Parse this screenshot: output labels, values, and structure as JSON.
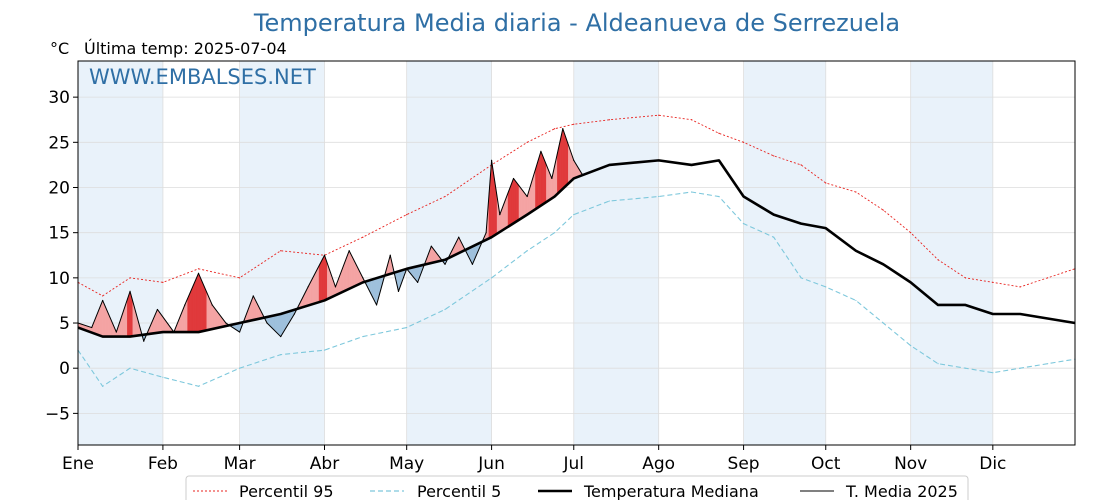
{
  "title": "Temperatura Media diaria - Aldeanueva de Serrezuela",
  "unit_label": "°C",
  "last_temp_label": "Última temp: 2025-07-04",
  "watermark": "WWW.EMBALSES.NET",
  "colors": {
    "title": "#2f6fa5",
    "p95": "#e8231f",
    "p5": "#7ec8dc",
    "median": "#000000",
    "current": "#000000",
    "fill_above": "#f4a3a3",
    "fill_above_dark": "#e0393b",
    "fill_below": "#5b8db8",
    "fill_below_light": "#9ec0dc",
    "band": "#e9f2fa"
  },
  "legend": [
    {
      "label": "Percentil 95",
      "style": "p95"
    },
    {
      "label": "Percentil 5",
      "style": "p5"
    },
    {
      "label": "Temperatura Mediana",
      "style": "median"
    },
    {
      "label": "T. Media 2025",
      "style": "current"
    }
  ],
  "chart_data": {
    "type": "line",
    "title": "Temperatura Media diaria - Aldeanueva de Serrezuela",
    "xlabel": "",
    "ylabel": "°C",
    "ylim": [
      -8.5,
      34
    ],
    "xlim": [
      1,
      365
    ],
    "yticks": [
      -5,
      0,
      5,
      10,
      15,
      20,
      25,
      30
    ],
    "months": [
      {
        "label": "Ene",
        "day": 1
      },
      {
        "label": "Feb",
        "day": 32
      },
      {
        "label": "Mar",
        "day": 60
      },
      {
        "label": "Abr",
        "day": 91
      },
      {
        "label": "May",
        "day": 121
      },
      {
        "label": "Jun",
        "day": 152
      },
      {
        "label": "Jul",
        "day": 182
      },
      {
        "label": "Ago",
        "day": 213
      },
      {
        "label": "Sep",
        "day": 244
      },
      {
        "label": "Oct",
        "day": 274
      },
      {
        "label": "Nov",
        "day": 305
      },
      {
        "label": "Dic",
        "day": 335
      }
    ],
    "grid": true,
    "legend_position": "bottom",
    "series": [
      {
        "name": "Percentil 95",
        "style": "p95",
        "x": [
          1,
          10,
          20,
          32,
          45,
          60,
          75,
          91,
          105,
          121,
          135,
          152,
          165,
          175,
          182,
          195,
          213,
          225,
          235,
          244,
          255,
          265,
          274,
          285,
          295,
          305,
          315,
          325,
          335,
          345,
          355,
          365
        ],
        "y": [
          9.5,
          8,
          10,
          9.5,
          11,
          10,
          13,
          12.5,
          14.5,
          17,
          19,
          22.5,
          25,
          26.5,
          27,
          27.5,
          28,
          27.5,
          26,
          25,
          23.5,
          22.5,
          20.5,
          19.5,
          17.5,
          15,
          12,
          10,
          9.5,
          9,
          10,
          11
        ]
      },
      {
        "name": "Percentil 5",
        "style": "p5",
        "x": [
          1,
          10,
          20,
          32,
          45,
          60,
          75,
          91,
          105,
          121,
          135,
          152,
          165,
          175,
          182,
          195,
          213,
          225,
          235,
          244,
          255,
          265,
          274,
          285,
          295,
          305,
          315,
          325,
          335,
          345,
          355,
          365
        ],
        "y": [
          2,
          -2,
          0,
          -1,
          -2,
          0,
          1.5,
          2,
          3.5,
          4.5,
          6.5,
          10,
          13,
          15,
          17,
          18.5,
          19,
          19.5,
          19,
          16,
          14.5,
          10,
          9,
          7.5,
          5,
          2.5,
          0.5,
          0,
          -0.5,
          0,
          0.5,
          1
        ]
      },
      {
        "name": "Temperatura Mediana",
        "style": "median",
        "x": [
          1,
          10,
          20,
          32,
          45,
          60,
          75,
          91,
          105,
          121,
          135,
          152,
          165,
          175,
          182,
          195,
          213,
          225,
          235,
          244,
          255,
          265,
          274,
          285,
          295,
          305,
          315,
          325,
          335,
          345,
          355,
          365
        ],
        "y": [
          4.5,
          3.5,
          3.5,
          4,
          4,
          5,
          6,
          7.5,
          9.5,
          11,
          12,
          14.5,
          17,
          19,
          21,
          22.5,
          23,
          22.5,
          23,
          19,
          17,
          16,
          15.5,
          13,
          11.5,
          9.5,
          7,
          7,
          6,
          6,
          5.5,
          5
        ]
      },
      {
        "name": "T. Media 2025",
        "style": "current",
        "x": [
          1,
          6,
          10,
          15,
          20,
          25,
          30,
          36,
          40,
          45,
          50,
          55,
          60,
          65,
          70,
          75,
          80,
          85,
          91,
          95,
          100,
          105,
          110,
          115,
          118,
          121,
          125,
          130,
          135,
          140,
          145,
          150,
          152,
          155,
          160,
          165,
          170,
          174,
          178,
          182,
          185
        ],
        "y": [
          5,
          4.5,
          7.5,
          4,
          8.5,
          3,
          6.5,
          4,
          7,
          10.5,
          7,
          5,
          4,
          8,
          5,
          3.5,
          6,
          9,
          12.5,
          9,
          13,
          10,
          7,
          12.5,
          8.5,
          11,
          9.5,
          13.5,
          11.5,
          14.5,
          11.5,
          15,
          23,
          17,
          21,
          19,
          24,
          21,
          26.5,
          23,
          21.5
        ]
      }
    ]
  }
}
